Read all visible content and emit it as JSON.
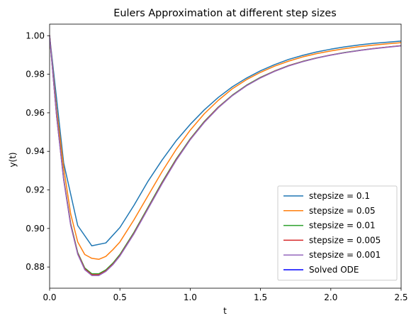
{
  "chart_data": {
    "type": "line",
    "title": "Eulers Approximation at different step sizes",
    "xlabel": "t",
    "ylabel": "y(t)",
    "xlim": [
      0.0,
      2.5
    ],
    "ylim": [
      0.869,
      1.006
    ],
    "xticks": [
      "0.0",
      "0.5",
      "1.0",
      "1.5",
      "2.0",
      "2.5"
    ],
    "yticks": [
      "0.88",
      "0.90",
      "0.92",
      "0.94",
      "0.96",
      "0.98",
      "1.00"
    ],
    "grid": false,
    "legend_position": "lower-right",
    "series": [
      {
        "name": "stepsize = 0.1",
        "color": "#1f77b4",
        "x": [
          0.0,
          0.1,
          0.2,
          0.3,
          0.4,
          0.5,
          0.6,
          0.7,
          0.8,
          0.9,
          1.0,
          1.1,
          1.2,
          1.3,
          1.4,
          1.5,
          1.6,
          1.7,
          1.8,
          1.9,
          2.0,
          2.1,
          2.2,
          2.3,
          2.4,
          2.5
        ],
        "y": [
          1.0,
          0.934,
          0.9015,
          0.891,
          0.8925,
          0.9005,
          0.912,
          0.9245,
          0.9355,
          0.9455,
          0.954,
          0.9615,
          0.968,
          0.9735,
          0.978,
          0.9818,
          0.985,
          0.9877,
          0.9898,
          0.9916,
          0.993,
          0.9942,
          0.9952,
          0.996,
          0.9966,
          0.9972
        ]
      },
      {
        "name": "stepsize = 0.05",
        "color": "#ff7f0e",
        "x": [
          0.0,
          0.05,
          0.1,
          0.15,
          0.2,
          0.25,
          0.3,
          0.35,
          0.4,
          0.45,
          0.5,
          0.6,
          0.7,
          0.8,
          0.9,
          1.0,
          1.1,
          1.2,
          1.3,
          1.4,
          1.5,
          1.6,
          1.7,
          1.8,
          1.9,
          2.0,
          2.1,
          2.2,
          2.3,
          2.4,
          2.5
        ],
        "y": [
          1.0,
          0.9615,
          0.9315,
          0.9075,
          0.893,
          0.8865,
          0.8845,
          0.884,
          0.8855,
          0.889,
          0.893,
          0.9045,
          0.917,
          0.9295,
          0.941,
          0.951,
          0.9595,
          0.9665,
          0.9725,
          0.9772,
          0.981,
          0.9842,
          0.9868,
          0.989,
          0.9907,
          0.9921,
          0.9933,
          0.9943,
          0.9951,
          0.9958,
          0.9964
        ]
      },
      {
        "name": "stepsize = 0.01",
        "color": "#2ca02c",
        "x": [
          0.0,
          0.05,
          0.1,
          0.15,
          0.2,
          0.25,
          0.3,
          0.35,
          0.4,
          0.45,
          0.5,
          0.6,
          0.7,
          0.8,
          0.9,
          1.0,
          1.1,
          1.2,
          1.3,
          1.4,
          1.5,
          1.6,
          1.7,
          1.8,
          1.9,
          2.0,
          2.1,
          2.2,
          2.3,
          2.4,
          2.5
        ],
        "y": [
          1.0,
          0.9585,
          0.926,
          0.9025,
          0.8875,
          0.8795,
          0.8765,
          0.8765,
          0.8785,
          0.882,
          0.8865,
          0.898,
          0.911,
          0.924,
          0.936,
          0.9465,
          0.9555,
          0.963,
          0.9692,
          0.9743,
          0.9784,
          0.9817,
          0.9845,
          0.9867,
          0.9885,
          0.99,
          0.9913,
          0.9924,
          0.9933,
          0.9941,
          0.9948
        ]
      },
      {
        "name": "stepsize = 0.005",
        "color": "#d62728",
        "x": [
          0.0,
          0.05,
          0.1,
          0.15,
          0.2,
          0.25,
          0.3,
          0.35,
          0.4,
          0.45,
          0.5,
          0.6,
          0.7,
          0.8,
          0.9,
          1.0,
          1.1,
          1.2,
          1.3,
          1.4,
          1.5,
          1.6,
          1.7,
          1.8,
          1.9,
          2.0,
          2.1,
          2.2,
          2.3,
          2.4,
          2.5
        ],
        "y": [
          1.0,
          0.9582,
          0.9255,
          0.902,
          0.887,
          0.879,
          0.876,
          0.876,
          0.878,
          0.8815,
          0.886,
          0.8975,
          0.9105,
          0.9235,
          0.9356,
          0.9462,
          0.9552,
          0.9628,
          0.969,
          0.9741,
          0.9782,
          0.9816,
          0.9844,
          0.9866,
          0.9884,
          0.99,
          0.9912,
          0.9923,
          0.9933,
          0.9941,
          0.9948
        ]
      },
      {
        "name": "stepsize = 0.001",
        "color": "#9467bd",
        "x": [
          0.0,
          0.05,
          0.1,
          0.15,
          0.2,
          0.25,
          0.3,
          0.35,
          0.4,
          0.45,
          0.5,
          0.6,
          0.7,
          0.8,
          0.9,
          1.0,
          1.1,
          1.2,
          1.3,
          1.4,
          1.5,
          1.6,
          1.7,
          1.8,
          1.9,
          2.0,
          2.1,
          2.2,
          2.3,
          2.4,
          2.5
        ],
        "y": [
          1.0,
          0.958,
          0.9252,
          0.9016,
          0.8866,
          0.8786,
          0.8756,
          0.8756,
          0.8777,
          0.8812,
          0.8857,
          0.8972,
          0.9102,
          0.9232,
          0.9353,
          0.946,
          0.955,
          0.9626,
          0.9689,
          0.974,
          0.9781,
          0.9815,
          0.9843,
          0.9865,
          0.9884,
          0.9899,
          0.9912,
          0.9923,
          0.9932,
          0.994,
          0.9947
        ]
      },
      {
        "name": "Solved ODE",
        "color": "#0000ff",
        "x": [],
        "y": []
      }
    ]
  }
}
